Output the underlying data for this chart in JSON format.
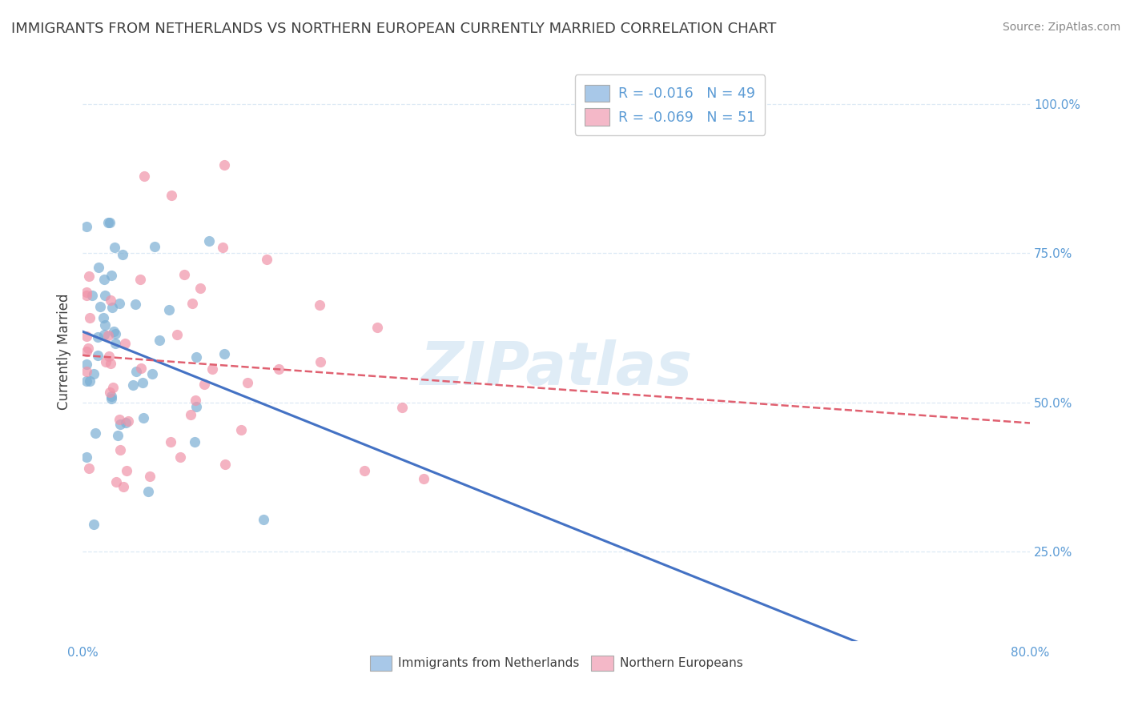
{
  "title": "IMMIGRANTS FROM NETHERLANDS VS NORTHERN EUROPEAN CURRENTLY MARRIED CORRELATION CHART",
  "source": "Source: ZipAtlas.com",
  "ylabel_label": "Currently Married",
  "legend_entries": [
    {
      "color": "#a8c8e8",
      "R": "-0.016",
      "N": "49"
    },
    {
      "color": "#f4b8c8",
      "R": "-0.069",
      "N": "51"
    }
  ],
  "legend_labels": [
    "Immigrants from Netherlands",
    "Northern Europeans"
  ],
  "blue_color": "#7bafd4",
  "pink_color": "#f093a8",
  "blue_line_color": "#4472c4",
  "pink_line_color": "#e06070",
  "watermark": "ZIPatlas",
  "xlim": [
    0,
    80
  ],
  "ylim": [
    10,
    107
  ],
  "yticks": [
    25,
    50,
    75,
    100
  ],
  "ytick_labels": [
    "25.0%",
    "50.0%",
    "75.0%",
    "100.0%"
  ],
  "title_color": "#404040",
  "axis_color": "#5b9bd5",
  "grid_color": "#dce9f5",
  "background_color": "#ffffff",
  "title_fontsize": 13,
  "source_fontsize": 10,
  "tick_fontsize": 11
}
